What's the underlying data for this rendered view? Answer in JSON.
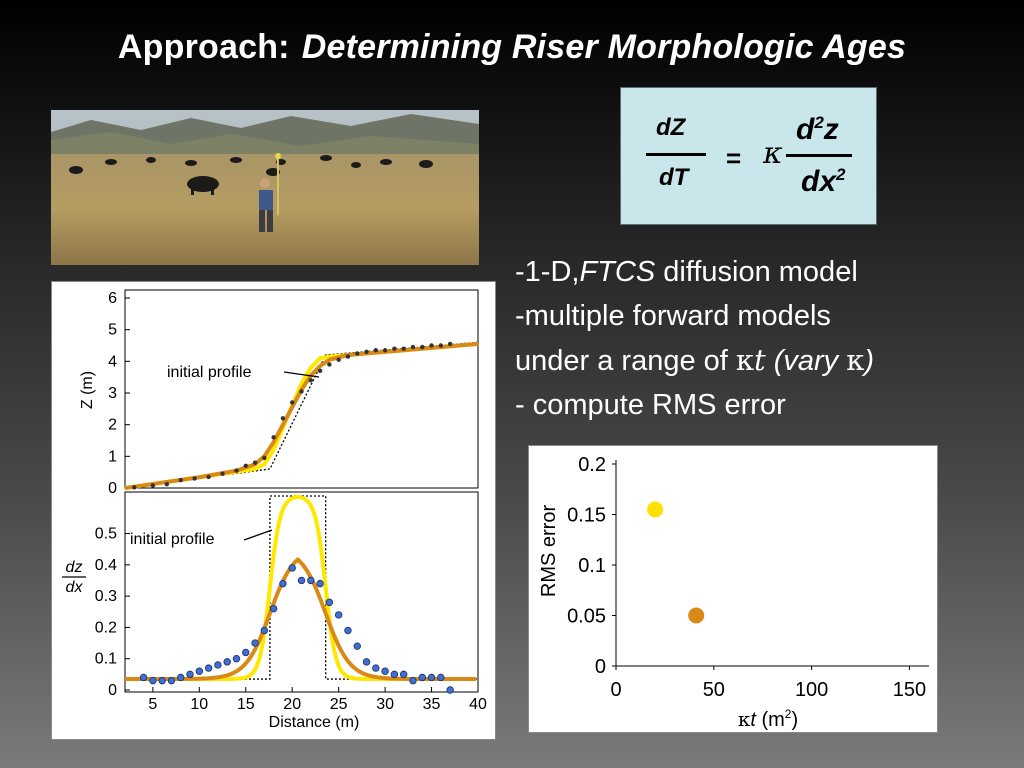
{
  "slide": {
    "title_prefix": "Approach:",
    "title_main": "Determining Riser Morphologic Ages"
  },
  "photo": {
    "description_icon": "field-survey-photo-icon"
  },
  "equation": {
    "lhs_num": "dZ",
    "lhs_den": "dT",
    "equals": "=",
    "kappa": "κ",
    "rhs_num_base": "d",
    "rhs_num_exp": "2",
    "rhs_num_var": "z",
    "rhs_den_base": "dx",
    "rhs_den_exp": "2"
  },
  "bullets": {
    "b1_prefix": "-1-D,",
    "b1_italic": "FTCS",
    "b1_rest": " diffusion model",
    "b2": "-multiple forward models",
    "b3_prefix": " under a range of ",
    "b3_kappa": "κ",
    "b3_t": "t",
    "b3_vary": "  (vary ",
    "b3_kappa2": "κ",
    "b3_close": ")",
    "b4": "- compute RMS error"
  },
  "chart_data": [
    {
      "type": "line",
      "ylabel": "Z (m)",
      "xlim": [
        2,
        40
      ],
      "ylim": [
        0,
        6
      ],
      "yticks": [
        "0",
        "1",
        "2",
        "3",
        "4",
        "5",
        "6"
      ],
      "annotation": "initial profile",
      "series": [
        {
          "color": "#ffe800",
          "x": [
            2,
            10,
            16,
            17,
            18,
            19,
            20,
            21,
            22,
            23,
            24,
            30,
            40
          ],
          "y": [
            0,
            0.34,
            0.6,
            0.75,
            1.2,
            1.9,
            2.6,
            3.3,
            3.8,
            4.1,
            4.15,
            4.3,
            4.55
          ]
        },
        {
          "color": "#d98a16",
          "x": [
            2,
            10,
            14,
            16,
            17,
            18,
            19,
            20,
            21,
            22,
            23,
            24,
            26,
            30,
            40
          ],
          "y": [
            0,
            0.34,
            0.55,
            0.75,
            1.0,
            1.45,
            2.0,
            2.55,
            3.1,
            3.55,
            3.85,
            4.05,
            4.2,
            4.3,
            4.55
          ]
        }
      ],
      "initial_profile": {
        "x": [
          2,
          17.6,
          23.6,
          40
        ],
        "y": [
          0,
          0.6,
          4.2,
          4.6
        ]
      },
      "points": {
        "color": "#333333",
        "x": [
          3,
          5,
          6.5,
          8,
          9.5,
          11,
          12.5,
          14,
          15,
          16,
          17,
          18,
          19,
          20,
          21,
          22,
          23,
          24,
          25,
          26,
          27,
          28,
          29,
          30,
          31,
          32,
          33,
          34,
          35,
          36,
          37
        ],
        "y": [
          0.02,
          0.08,
          0.12,
          0.25,
          0.3,
          0.35,
          0.45,
          0.55,
          0.7,
          0.8,
          0.95,
          1.6,
          2.2,
          2.7,
          3.05,
          3.4,
          3.7,
          3.9,
          4.05,
          4.15,
          4.25,
          4.3,
          4.35,
          4.35,
          4.4,
          4.4,
          4.45,
          4.45,
          4.5,
          4.5,
          4.55
        ]
      }
    },
    {
      "type": "line",
      "xlabel": "Distance (m)",
      "ylabel_num": "dz",
      "ylabel_den": "dx",
      "xlim": [
        2,
        40
      ],
      "ylim": [
        0,
        0.62
      ],
      "xticks": [
        "5",
        "10",
        "15",
        "20",
        "25",
        "30",
        "35",
        "40"
      ],
      "yticks": [
        "0",
        "0.1",
        "0.2",
        "0.3",
        "0.4",
        "0.5"
      ],
      "annotation": "initial profile",
      "series": [
        {
          "color": "#ffe800",
          "mu": 20.6,
          "halfwidth": 3.0,
          "edge": 0.55,
          "peak": 0.62,
          "base": 0.035
        },
        {
          "color": "#d98a16",
          "mu": 20.6,
          "halfwidth": 3.0,
          "edge": 1.3,
          "peak": 0.455,
          "base": 0.035
        }
      ],
      "initial_profile": {
        "x": [
          2,
          17.6,
          17.6,
          23.6,
          23.6,
          40
        ],
        "y": [
          0.035,
          0.035,
          0.62,
          0.62,
          0.035,
          0.035
        ]
      },
      "points": {
        "color": "#3f6fd1",
        "x": [
          4,
          5,
          6,
          7,
          8,
          9,
          10,
          11,
          12,
          13,
          14,
          15,
          16,
          17,
          18,
          19,
          20,
          21,
          22,
          23,
          24,
          25,
          26,
          27,
          28,
          29,
          30,
          31,
          32,
          33,
          34,
          35,
          36,
          37
        ],
        "y": [
          0.04,
          0.03,
          0.03,
          0.03,
          0.04,
          0.05,
          0.06,
          0.07,
          0.08,
          0.09,
          0.1,
          0.12,
          0.15,
          0.19,
          0.26,
          0.34,
          0.39,
          0.35,
          0.35,
          0.34,
          0.28,
          0.24,
          0.19,
          0.14,
          0.09,
          0.07,
          0.06,
          0.05,
          0.05,
          0.03,
          0.04,
          0.04,
          0.04,
          0.0
        ]
      }
    },
    {
      "type": "scatter",
      "ylabel": "RMS error",
      "xlabel_k": "κ",
      "xlabel_t": "t",
      "xlabel_unit": " (m",
      "xlabel_exp": "2",
      "xlabel_close": ")",
      "xlim": [
        0,
        160
      ],
      "ylim": [
        0,
        0.2
      ],
      "xticks": [
        "0",
        "50",
        "100",
        "150"
      ],
      "yticks": [
        "0",
        "0.05",
        "0.1",
        "0.15",
        "0.2"
      ],
      "points": [
        {
          "x": 20,
          "y": 0.155,
          "color": "#ffe000"
        },
        {
          "x": 41,
          "y": 0.05,
          "color": "#d98a16"
        }
      ]
    }
  ]
}
